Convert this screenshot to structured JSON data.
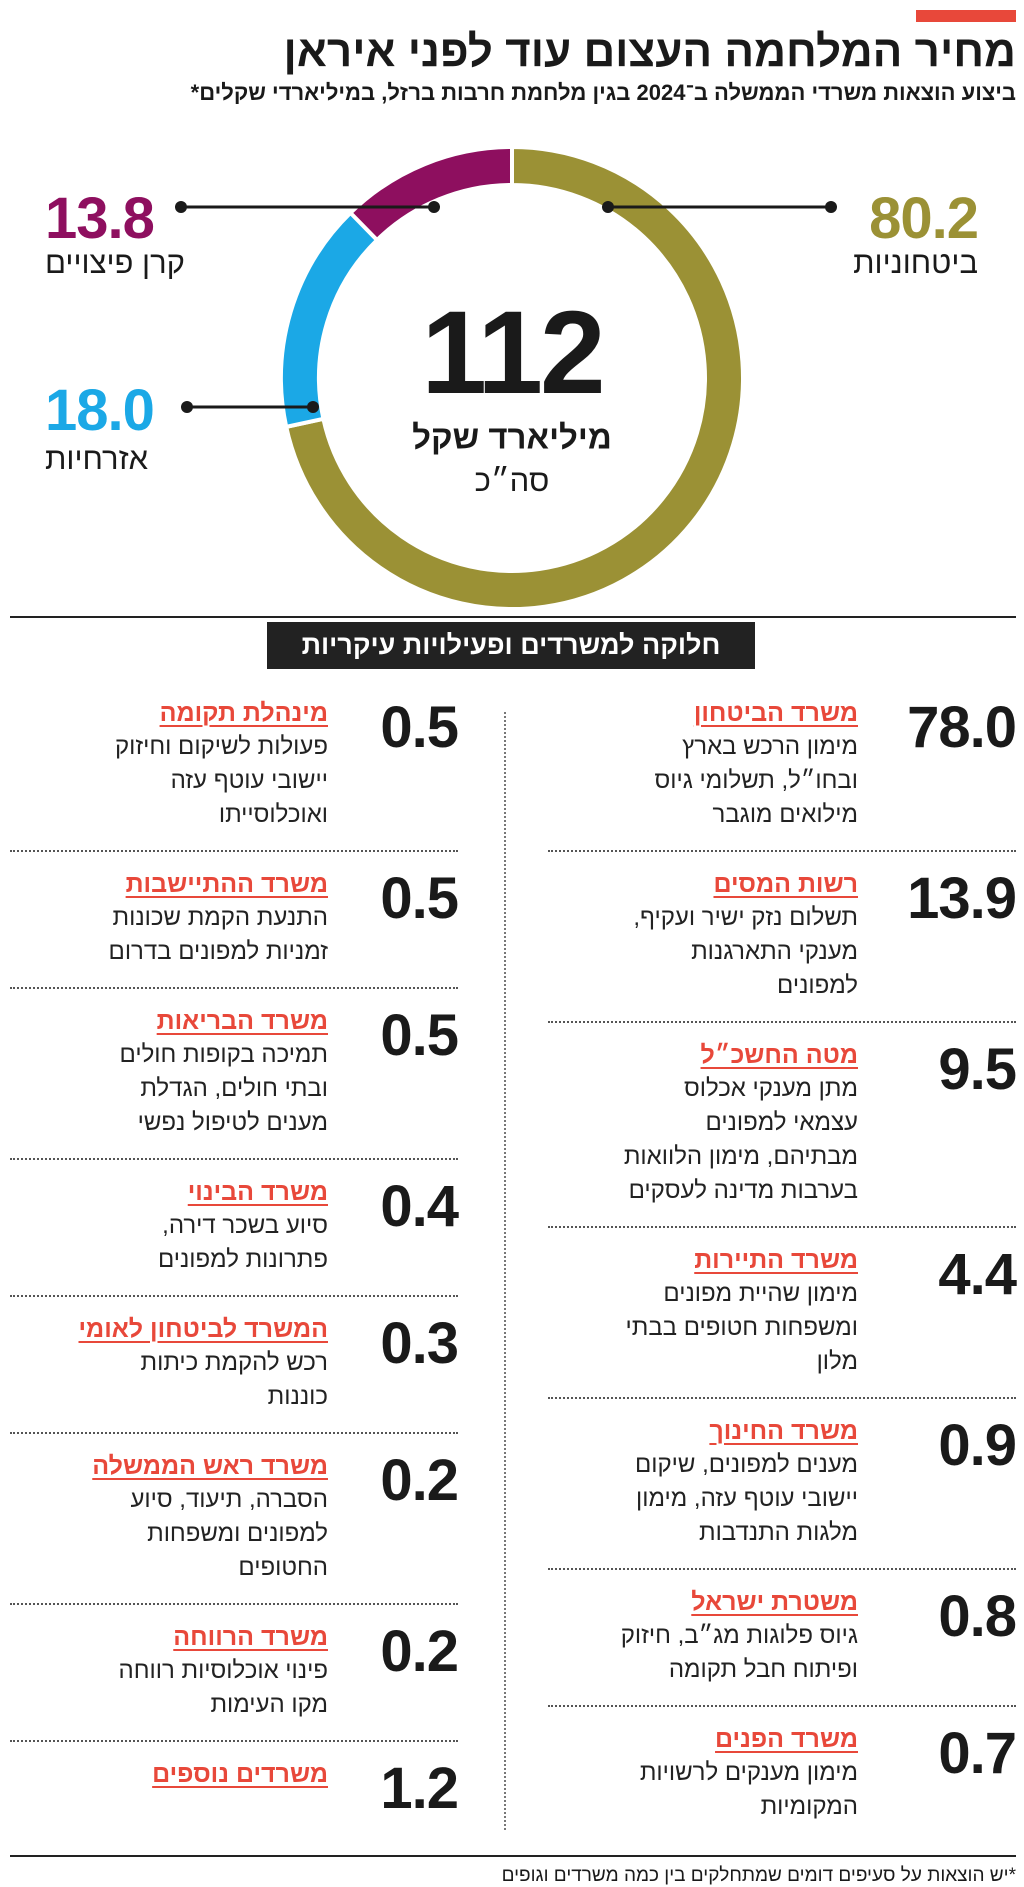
{
  "chart_data": {
    "type": "donut",
    "title": "מחיר המלחמה העצום עוד לפני איראן",
    "subtitle": "ביצוע הוצאות משרדי הממשלה ב־2024 בגין מלחמת חרבות ברזל, במיליארדי שקלים*",
    "categories": [
      "ביטחוניות",
      "אזרחיות",
      "קרן פיצויים"
    ],
    "values": [
      80.2,
      18,
      13.8
    ],
    "value_labels": [
      "80.2",
      "18.0",
      "13.8"
    ],
    "colors": [
      "#9b9135",
      "#1ba8e6",
      "#8e0f5f"
    ],
    "center": {
      "total": 112,
      "unit": "מיליארד שקל",
      "label": "סה״כ"
    }
  },
  "breakdown": {
    "heading": "חלוקה למשרדים ופעילויות עיקריות",
    "columns": [
      [
        {
          "value": "78.0",
          "title": "משרד הביטחון",
          "lines": [
            "מימון הרכש בארץ",
            "ובחו״ל, תשלומי גיוס",
            "מילואים מוגבר"
          ]
        },
        {
          "value": "13.9",
          "title": "רשות המסים",
          "lines": [
            "תשלום נזק ישיר ועקיף,",
            "מענקי התארגנות",
            "למפונים"
          ]
        },
        {
          "value": "9.5",
          "title": "מטה החשכ״ל",
          "lines": [
            "מתן מענקי אכלוס",
            "עצמאי למפונים",
            "מבתיהם, מימון הלוואות",
            "בערבות מדינה לעסקים"
          ]
        },
        {
          "value": "4.4",
          "title": "משרד התיירות",
          "lines": [
            "מימון שהיית מפונים",
            "ומשפחות חטופים בבתי",
            "מלון"
          ]
        },
        {
          "value": "0.9",
          "title": "משרד החינוך",
          "lines": [
            "מענים למפונים, שיקום",
            "יישובי עוטף עזה, מימון",
            "מלגות התנדבות"
          ]
        },
        {
          "value": "0.8",
          "title": "משטרת ישראל",
          "lines": [
            "גיוס פלוגות מג״ב, חיזוק",
            "ופיתוח חבל תקומה"
          ]
        },
        {
          "value": "0.7",
          "title": "משרד הפנים",
          "lines": [
            "מימון מענקים לרשויות",
            "המקומיות"
          ]
        }
      ],
      [
        {
          "value": "0.5",
          "title": "מינהלת תקומה",
          "lines": [
            "פעולות לשיקום וחיזוק",
            "יישובי עוטף עזה",
            "ואוכלוסייתו"
          ]
        },
        {
          "value": "0.5",
          "title": "משרד ההתיישבות",
          "lines": [
            "התנעת הקמת שכונות",
            "זמניות למפונים בדרום"
          ]
        },
        {
          "value": "0.5",
          "title": "משרד הבריאות",
          "lines": [
            "תמיכה בקופות חולים",
            "ובתי חולים, הגדלת",
            "מענים לטיפול נפשי"
          ]
        },
        {
          "value": "0.4",
          "title": "משרד הבינוי",
          "lines": [
            "סיוע בשכר דירה,",
            "פתרונות למפונים"
          ]
        },
        {
          "value": "0.3",
          "title": "המשרד לביטחון לאומי",
          "lines": [
            "רכש להקמת כיתות",
            "כוננות"
          ]
        },
        {
          "value": "0.2",
          "title": "משרד ראש הממשלה",
          "lines": [
            "הסברה, תיעוד, סיוע",
            "למפונים ומשפחות",
            "החטופים"
          ]
        },
        {
          "value": "0.2",
          "title": "משרד הרווחה",
          "lines": [
            "פינוי אוכלוסיות רווחה",
            "מקו העימות"
          ]
        },
        {
          "value": "1.2",
          "title": "משרדים נוספים",
          "lines": []
        }
      ]
    ]
  },
  "footnote": "*יש הוצאות על סעיפים דומים שמתחלקים בין כמה משרדים וגופים"
}
